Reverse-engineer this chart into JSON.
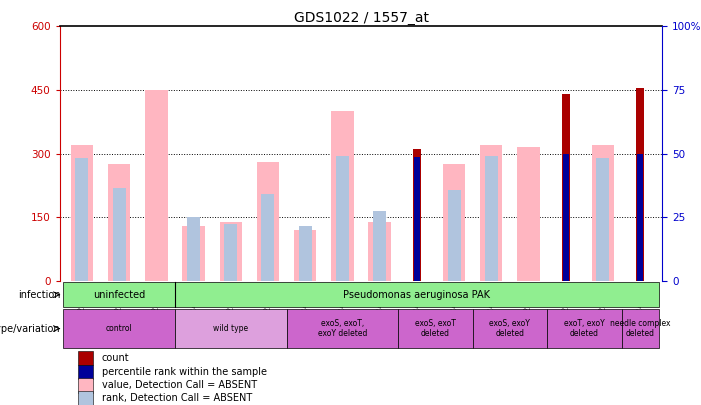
{
  "title": "GDS1022 / 1557_at",
  "samples": [
    "GSM24740",
    "GSM24741",
    "GSM24742",
    "GSM24743",
    "GSM24744",
    "GSM24745",
    "GSM24784",
    "GSM24785",
    "GSM24786",
    "GSM24787",
    "GSM24788",
    "GSM24789",
    "GSM24790",
    "GSM24791",
    "GSM24792",
    "GSM24793"
  ],
  "count_values": [
    null,
    null,
    null,
    null,
    null,
    null,
    null,
    null,
    null,
    310,
    null,
    null,
    null,
    440,
    null,
    455
  ],
  "percentile_values": [
    null,
    null,
    null,
    null,
    null,
    null,
    null,
    null,
    null,
    293,
    null,
    null,
    null,
    300,
    null,
    300
  ],
  "absent_value_values": [
    320,
    275,
    450,
    130,
    140,
    280,
    120,
    400,
    140,
    null,
    275,
    320,
    315,
    null,
    320,
    null
  ],
  "absent_rank_values": [
    290,
    220,
    null,
    150,
    135,
    205,
    130,
    295,
    165,
    null,
    215,
    295,
    null,
    null,
    290,
    null
  ],
  "ylim_left": [
    0,
    600
  ],
  "ylim_right": [
    0,
    100
  ],
  "yticks_left": [
    0,
    150,
    300,
    450,
    600
  ],
  "yticks_right": [
    0,
    25,
    50,
    75,
    100
  ],
  "infection_groups": [
    {
      "label": "uninfected",
      "start": 0,
      "end": 3,
      "color": "#90EE90"
    },
    {
      "label": "Pseudomonas aeruginosa PAK",
      "start": 3,
      "end": 16,
      "color": "#90EE90"
    }
  ],
  "genotype_groups": [
    {
      "label": "control",
      "start": 0,
      "end": 3,
      "color": "#CC66CC"
    },
    {
      "label": "wild type",
      "start": 3,
      "end": 6,
      "color": "#DDA0DD"
    },
    {
      "label": "exoS, exoT,\nexoY deleted",
      "start": 6,
      "end": 9,
      "color": "#CC66CC"
    },
    {
      "label": "exoS, exoT\ndeleted",
      "start": 9,
      "end": 11,
      "color": "#CC66CC"
    },
    {
      "label": "exoS, exoY\ndeleted",
      "start": 11,
      "end": 13,
      "color": "#CC66CC"
    },
    {
      "label": "exoT, exoY\ndeleted",
      "start": 13,
      "end": 15,
      "color": "#CC66CC"
    },
    {
      "label": "needle complex\ndeleted",
      "start": 15,
      "end": 16,
      "color": "#CC66CC"
    }
  ],
  "count_color": "#AA0000",
  "percentile_color": "#000099",
  "absent_value_color": "#FFB6C1",
  "absent_rank_color": "#B0C4DE",
  "title_fontsize": 10,
  "axis_label_color_left": "#CC0000",
  "axis_label_color_right": "#0000CC",
  "legend_items": [
    {
      "color": "#AA0000",
      "label": "count"
    },
    {
      "color": "#000099",
      "label": "percentile rank within the sample"
    },
    {
      "color": "#FFB6C1",
      "label": "value, Detection Call = ABSENT"
    },
    {
      "color": "#B0C4DE",
      "label": "rank, Detection Call = ABSENT"
    }
  ]
}
